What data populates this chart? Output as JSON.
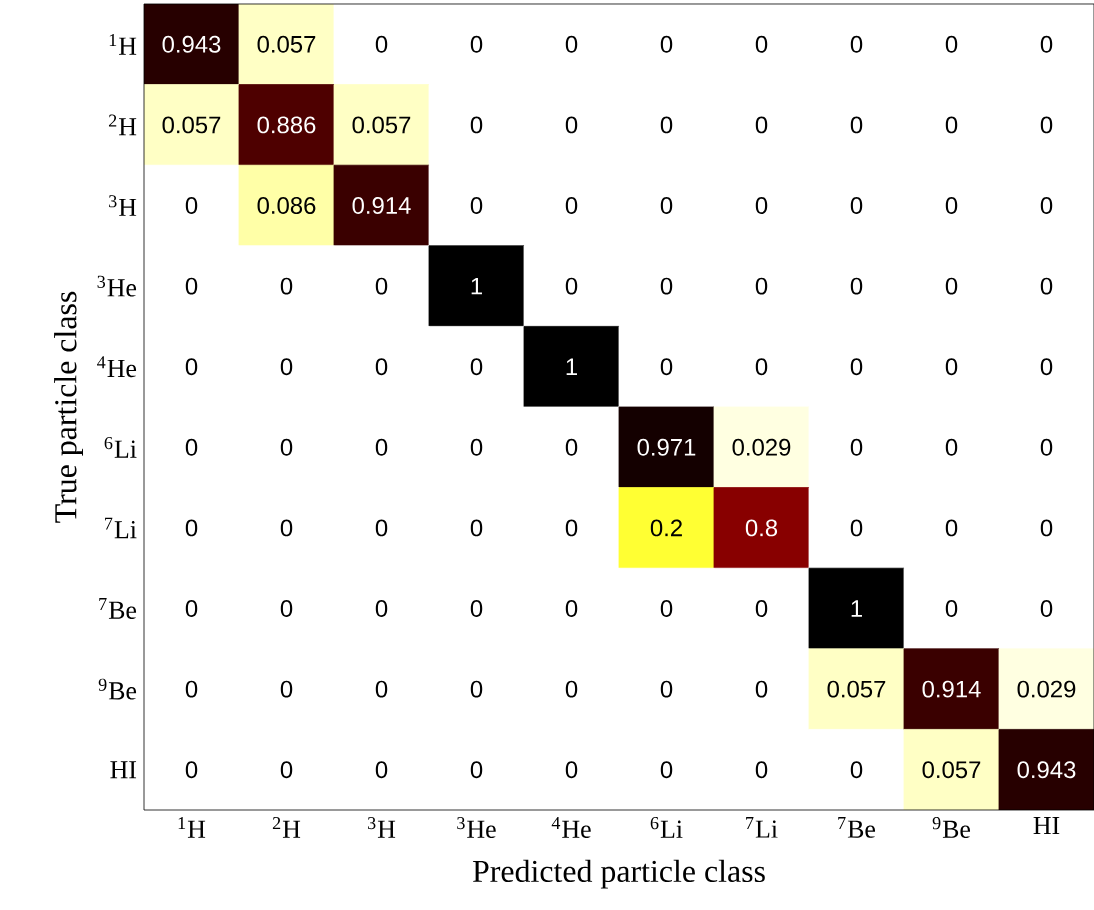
{
  "chart_data": {
    "type": "heatmap",
    "xlabel": "Predicted particle class",
    "ylabel": "True particle class",
    "categories": [
      "$^{1}$H",
      "$^{2}$H",
      "$^{3}$H",
      "$^{3}$He",
      "$^{4}$He",
      "$^{6}$Li",
      "$^{7}$Li",
      "$^{7}$Be",
      "$^{9}$Be",
      "HI"
    ],
    "y_categories": [
      "$^{1}$H",
      "$^{2}$H",
      "$^{3}$H",
      "$^{3}$He",
      "$^{4}$He",
      "$^{6}$Li",
      "$^{7}$Li",
      "$^{7}$Be",
      "$^{9}$Be",
      "HI"
    ],
    "cells": [
      [
        0.943,
        0.057,
        0,
        0,
        0,
        0,
        0,
        0,
        0,
        0
      ],
      [
        0.057,
        0.886,
        0.057,
        0,
        0,
        0,
        0,
        0,
        0,
        0
      ],
      [
        0,
        0.086,
        0.914,
        0,
        0,
        0,
        0,
        0,
        0,
        0
      ],
      [
        0,
        0,
        0,
        1,
        0,
        0,
        0,
        0,
        0,
        0
      ],
      [
        0,
        0,
        0,
        0,
        1,
        0,
        0,
        0,
        0,
        0
      ],
      [
        0,
        0,
        0,
        0,
        0,
        0.971,
        0.029,
        0,
        0,
        0
      ],
      [
        0,
        0,
        0,
        0,
        0,
        0.2,
        0.8,
        0,
        0,
        0
      ],
      [
        0,
        0,
        0,
        0,
        0,
        0,
        0,
        1,
        0,
        0
      ],
      [
        0,
        0,
        0,
        0,
        0,
        0,
        0,
        0.057,
        0.914,
        0.029
      ],
      [
        0,
        0,
        0,
        0,
        0,
        0,
        0,
        0,
        0.057,
        0.943
      ]
    ],
    "data_labels": true
  }
}
